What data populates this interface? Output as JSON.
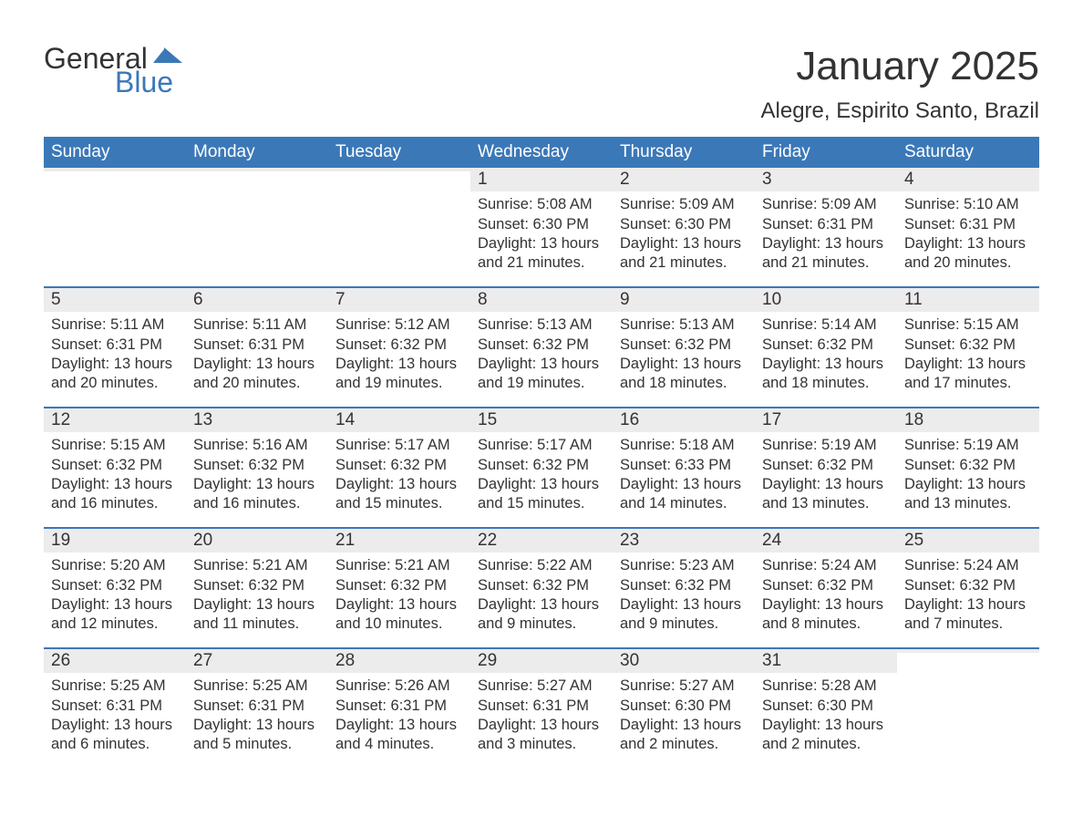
{
  "logo": {
    "text_general": "General",
    "text_blue": "Blue",
    "flag_color": "#3b78b8",
    "text_color": "#333333"
  },
  "title": "January 2025",
  "location": "Alegre, Espirito Santo, Brazil",
  "colors": {
    "header_bg": "#3b78b8",
    "header_fg": "#ffffff",
    "daynum_bg": "#ececec",
    "text": "#333333",
    "rule": "#3b78b8",
    "page_bg": "#ffffff"
  },
  "fonts": {
    "title_size_pt": 33,
    "location_size_pt": 18,
    "dow_size_pt": 14,
    "daynum_size_pt": 14,
    "body_size_pt": 12
  },
  "days_of_week": [
    "Sunday",
    "Monday",
    "Tuesday",
    "Wednesday",
    "Thursday",
    "Friday",
    "Saturday"
  ],
  "weeks": [
    [
      {
        "num": "",
        "sunrise": "",
        "sunset": "",
        "daylight": ""
      },
      {
        "num": "",
        "sunrise": "",
        "sunset": "",
        "daylight": ""
      },
      {
        "num": "",
        "sunrise": "",
        "sunset": "",
        "daylight": ""
      },
      {
        "num": "1",
        "sunrise": "Sunrise: 5:08 AM",
        "sunset": "Sunset: 6:30 PM",
        "daylight": "Daylight: 13 hours and 21 minutes."
      },
      {
        "num": "2",
        "sunrise": "Sunrise: 5:09 AM",
        "sunset": "Sunset: 6:30 PM",
        "daylight": "Daylight: 13 hours and 21 minutes."
      },
      {
        "num": "3",
        "sunrise": "Sunrise: 5:09 AM",
        "sunset": "Sunset: 6:31 PM",
        "daylight": "Daylight: 13 hours and 21 minutes."
      },
      {
        "num": "4",
        "sunrise": "Sunrise: 5:10 AM",
        "sunset": "Sunset: 6:31 PM",
        "daylight": "Daylight: 13 hours and 20 minutes."
      }
    ],
    [
      {
        "num": "5",
        "sunrise": "Sunrise: 5:11 AM",
        "sunset": "Sunset: 6:31 PM",
        "daylight": "Daylight: 13 hours and 20 minutes."
      },
      {
        "num": "6",
        "sunrise": "Sunrise: 5:11 AM",
        "sunset": "Sunset: 6:31 PM",
        "daylight": "Daylight: 13 hours and 20 minutes."
      },
      {
        "num": "7",
        "sunrise": "Sunrise: 5:12 AM",
        "sunset": "Sunset: 6:32 PM",
        "daylight": "Daylight: 13 hours and 19 minutes."
      },
      {
        "num": "8",
        "sunrise": "Sunrise: 5:13 AM",
        "sunset": "Sunset: 6:32 PM",
        "daylight": "Daylight: 13 hours and 19 minutes."
      },
      {
        "num": "9",
        "sunrise": "Sunrise: 5:13 AM",
        "sunset": "Sunset: 6:32 PM",
        "daylight": "Daylight: 13 hours and 18 minutes."
      },
      {
        "num": "10",
        "sunrise": "Sunrise: 5:14 AM",
        "sunset": "Sunset: 6:32 PM",
        "daylight": "Daylight: 13 hours and 18 minutes."
      },
      {
        "num": "11",
        "sunrise": "Sunrise: 5:15 AM",
        "sunset": "Sunset: 6:32 PM",
        "daylight": "Daylight: 13 hours and 17 minutes."
      }
    ],
    [
      {
        "num": "12",
        "sunrise": "Sunrise: 5:15 AM",
        "sunset": "Sunset: 6:32 PM",
        "daylight": "Daylight: 13 hours and 16 minutes."
      },
      {
        "num": "13",
        "sunrise": "Sunrise: 5:16 AM",
        "sunset": "Sunset: 6:32 PM",
        "daylight": "Daylight: 13 hours and 16 minutes."
      },
      {
        "num": "14",
        "sunrise": "Sunrise: 5:17 AM",
        "sunset": "Sunset: 6:32 PM",
        "daylight": "Daylight: 13 hours and 15 minutes."
      },
      {
        "num": "15",
        "sunrise": "Sunrise: 5:17 AM",
        "sunset": "Sunset: 6:32 PM",
        "daylight": "Daylight: 13 hours and 15 minutes."
      },
      {
        "num": "16",
        "sunrise": "Sunrise: 5:18 AM",
        "sunset": "Sunset: 6:33 PM",
        "daylight": "Daylight: 13 hours and 14 minutes."
      },
      {
        "num": "17",
        "sunrise": "Sunrise: 5:19 AM",
        "sunset": "Sunset: 6:32 PM",
        "daylight": "Daylight: 13 hours and 13 minutes."
      },
      {
        "num": "18",
        "sunrise": "Sunrise: 5:19 AM",
        "sunset": "Sunset: 6:32 PM",
        "daylight": "Daylight: 13 hours and 13 minutes."
      }
    ],
    [
      {
        "num": "19",
        "sunrise": "Sunrise: 5:20 AM",
        "sunset": "Sunset: 6:32 PM",
        "daylight": "Daylight: 13 hours and 12 minutes."
      },
      {
        "num": "20",
        "sunrise": "Sunrise: 5:21 AM",
        "sunset": "Sunset: 6:32 PM",
        "daylight": "Daylight: 13 hours and 11 minutes."
      },
      {
        "num": "21",
        "sunrise": "Sunrise: 5:21 AM",
        "sunset": "Sunset: 6:32 PM",
        "daylight": "Daylight: 13 hours and 10 minutes."
      },
      {
        "num": "22",
        "sunrise": "Sunrise: 5:22 AM",
        "sunset": "Sunset: 6:32 PM",
        "daylight": "Daylight: 13 hours and 9 minutes."
      },
      {
        "num": "23",
        "sunrise": "Sunrise: 5:23 AM",
        "sunset": "Sunset: 6:32 PM",
        "daylight": "Daylight: 13 hours and 9 minutes."
      },
      {
        "num": "24",
        "sunrise": "Sunrise: 5:24 AM",
        "sunset": "Sunset: 6:32 PM",
        "daylight": "Daylight: 13 hours and 8 minutes."
      },
      {
        "num": "25",
        "sunrise": "Sunrise: 5:24 AM",
        "sunset": "Sunset: 6:32 PM",
        "daylight": "Daylight: 13 hours and 7 minutes."
      }
    ],
    [
      {
        "num": "26",
        "sunrise": "Sunrise: 5:25 AM",
        "sunset": "Sunset: 6:31 PM",
        "daylight": "Daylight: 13 hours and 6 minutes."
      },
      {
        "num": "27",
        "sunrise": "Sunrise: 5:25 AM",
        "sunset": "Sunset: 6:31 PM",
        "daylight": "Daylight: 13 hours and 5 minutes."
      },
      {
        "num": "28",
        "sunrise": "Sunrise: 5:26 AM",
        "sunset": "Sunset: 6:31 PM",
        "daylight": "Daylight: 13 hours and 4 minutes."
      },
      {
        "num": "29",
        "sunrise": "Sunrise: 5:27 AM",
        "sunset": "Sunset: 6:31 PM",
        "daylight": "Daylight: 13 hours and 3 minutes."
      },
      {
        "num": "30",
        "sunrise": "Sunrise: 5:27 AM",
        "sunset": "Sunset: 6:30 PM",
        "daylight": "Daylight: 13 hours and 2 minutes."
      },
      {
        "num": "31",
        "sunrise": "Sunrise: 5:28 AM",
        "sunset": "Sunset: 6:30 PM",
        "daylight": "Daylight: 13 hours and 2 minutes."
      },
      {
        "num": "",
        "sunrise": "",
        "sunset": "",
        "daylight": ""
      }
    ]
  ]
}
